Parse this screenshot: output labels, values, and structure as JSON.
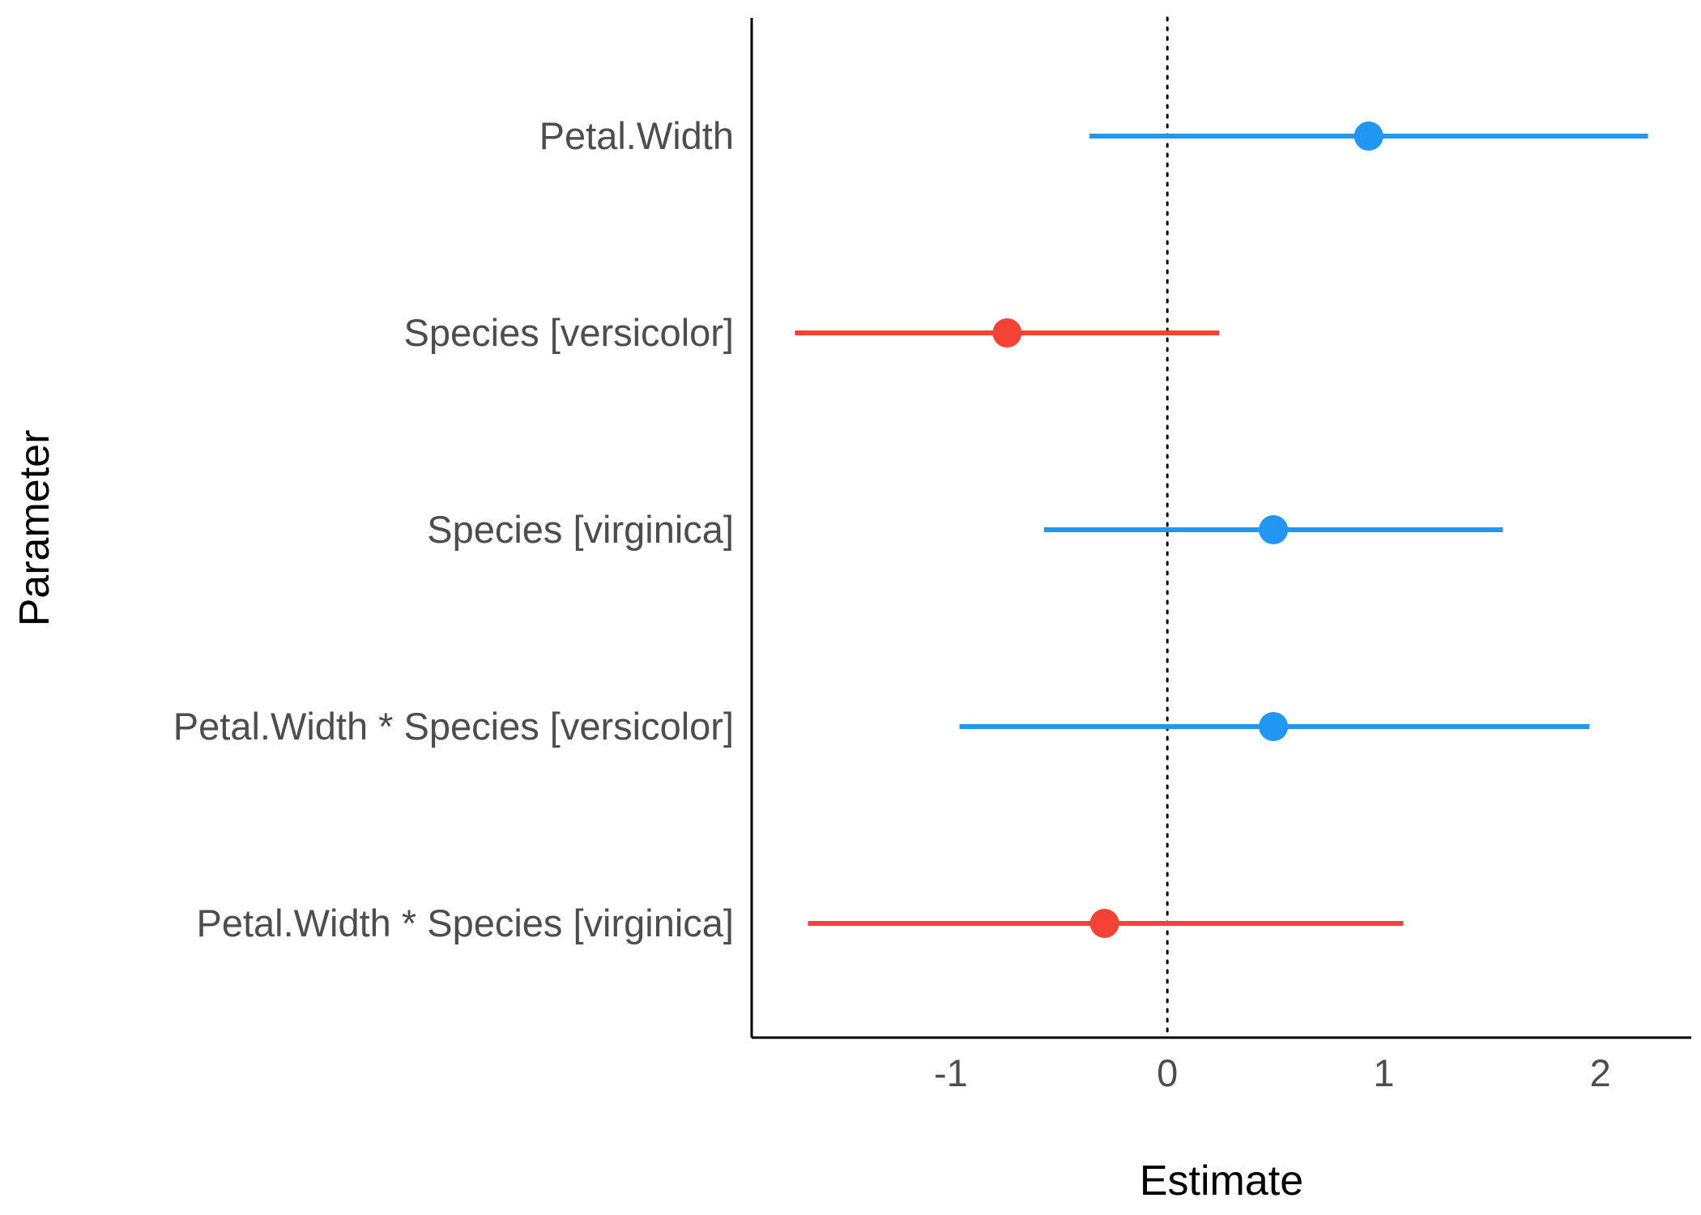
{
  "chart_data": {
    "type": "forest",
    "title": "",
    "xlabel": "Estimate",
    "ylabel": "Parameter",
    "xlim": [
      -1.92,
      2.42
    ],
    "xticks": [
      -1,
      0,
      1,
      2
    ],
    "reference_line": {
      "x": 0,
      "style": "dotted"
    },
    "grid": false,
    "legend": "none",
    "colors": {
      "positive": "#2196F3",
      "negative": "#F44336",
      "axis": "#000000",
      "tick_text": "#4d4d4d"
    },
    "parameters": [
      {
        "label": "Petal.Width",
        "estimate": 0.93,
        "ci_low": -0.36,
        "ci_high": 2.22
      },
      {
        "label": "Species [versicolor]",
        "estimate": -0.74,
        "ci_low": -1.72,
        "ci_high": 0.24
      },
      {
        "label": "Species [virginica]",
        "estimate": 0.49,
        "ci_low": -0.57,
        "ci_high": 1.55
      },
      {
        "label": "Petal.Width * Species [versicolor]",
        "estimate": 0.49,
        "ci_low": -0.96,
        "ci_high": 1.95
      },
      {
        "label": "Petal.Width * Species [virginica]",
        "estimate": -0.29,
        "ci_low": -1.66,
        "ci_high": 1.09
      }
    ]
  }
}
